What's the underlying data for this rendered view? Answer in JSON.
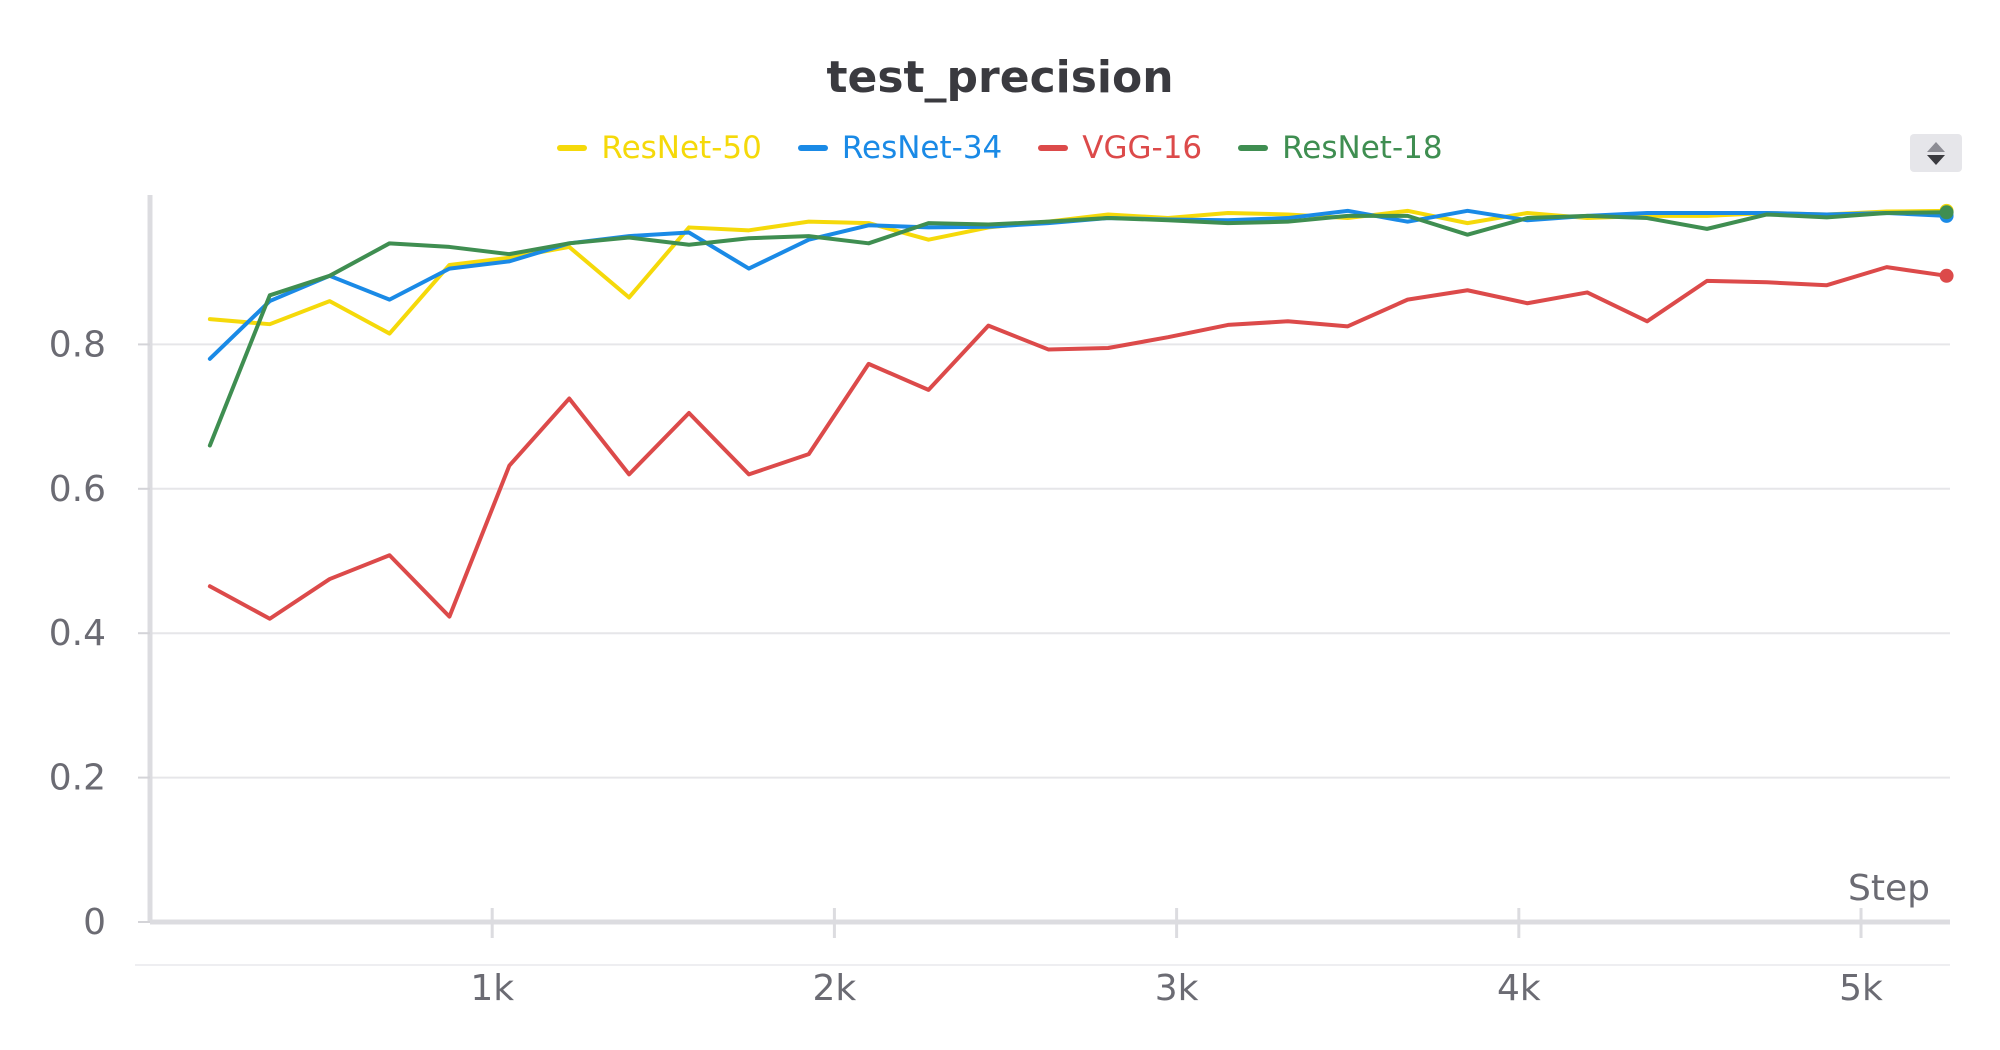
{
  "chart_data": {
    "type": "line",
    "title": "test_precision",
    "xlabel": "Step",
    "ylabel": "",
    "xlim": [
      0,
      5260
    ],
    "ylim": [
      0,
      1.0
    ],
    "x_ticks": [
      1000,
      2000,
      3000,
      4000,
      5000
    ],
    "x_tick_labels": [
      "1k",
      "2k",
      "3k",
      "4k",
      "5k"
    ],
    "y_ticks": [
      0,
      0.2,
      0.4,
      0.6,
      0.8
    ],
    "y_tick_labels": [
      "0",
      "0.2",
      "0.4",
      "0.6",
      "0.8"
    ],
    "grid": true,
    "legend": "top-center",
    "x": [
      175,
      350,
      525,
      700,
      875,
      1050,
      1225,
      1400,
      1575,
      1750,
      1925,
      2100,
      2275,
      2450,
      2625,
      2800,
      2975,
      3150,
      3325,
      3500,
      3675,
      3850,
      4025,
      4200,
      4375,
      4550,
      4725,
      4900,
      5075,
      5250
    ],
    "series": [
      {
        "name": "ResNet-50",
        "color": "#f5d90a",
        "values": [
          0.835,
          0.828,
          0.86,
          0.815,
          0.91,
          0.92,
          0.935,
          0.865,
          0.962,
          0.958,
          0.97,
          0.968,
          0.945,
          0.962,
          0.97,
          0.98,
          0.975,
          0.982,
          0.98,
          0.975,
          0.985,
          0.968,
          0.982,
          0.975,
          0.978,
          0.978,
          0.982,
          0.98,
          0.984,
          0.985
        ]
      },
      {
        "name": "ResNet-34",
        "color": "#1a8ae6",
        "values": [
          0.78,
          0.86,
          0.895,
          0.862,
          0.905,
          0.915,
          0.94,
          0.95,
          0.955,
          0.905,
          0.945,
          0.965,
          0.962,
          0.963,
          0.968,
          0.975,
          0.973,
          0.972,
          0.975,
          0.985,
          0.97,
          0.985,
          0.972,
          0.978,
          0.982,
          0.982,
          0.982,
          0.98,
          0.982,
          0.978
        ]
      },
      {
        "name": "VGG-16",
        "color": "#dc4a4a",
        "values": [
          0.465,
          0.42,
          0.475,
          0.508,
          0.423,
          0.632,
          0.725,
          0.62,
          0.705,
          0.62,
          0.648,
          0.773,
          0.737,
          0.826,
          0.793,
          0.795,
          0.81,
          0.827,
          0.832,
          0.825,
          0.862,
          0.875,
          0.857,
          0.872,
          0.832,
          0.888,
          0.886,
          0.882,
          0.907,
          0.895
        ]
      },
      {
        "name": "ResNet-18",
        "color": "#3f8e51",
        "values": [
          0.66,
          0.868,
          0.895,
          0.94,
          0.935,
          0.925,
          0.94,
          0.948,
          0.938,
          0.947,
          0.95,
          0.94,
          0.968,
          0.966,
          0.97,
          0.975,
          0.972,
          0.968,
          0.97,
          0.978,
          0.978,
          0.952,
          0.975,
          0.978,
          0.975,
          0.96,
          0.98,
          0.976,
          0.982,
          0.983
        ]
      }
    ]
  },
  "ui": {
    "scroll_icon": "updown-arrows-icon"
  }
}
